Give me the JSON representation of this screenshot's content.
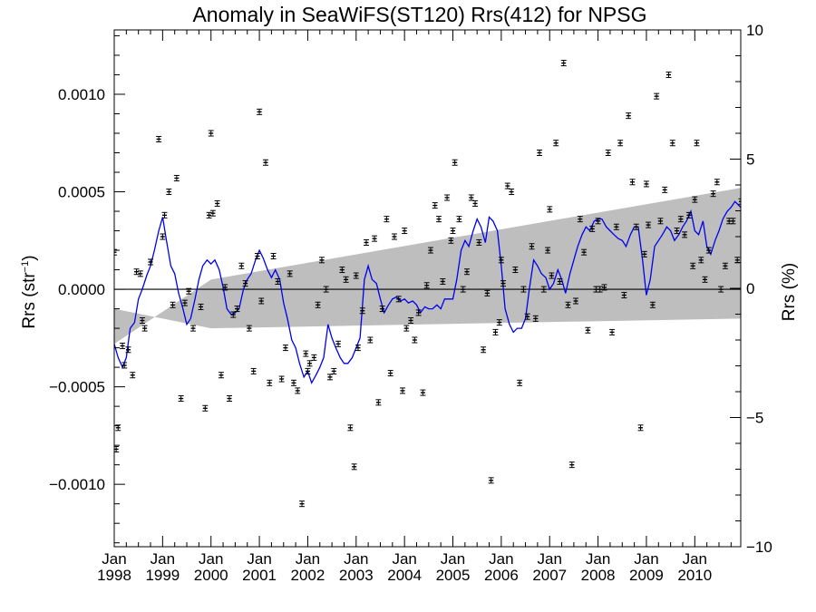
{
  "chart_data": {
    "type": "scatter",
    "title": "Anomaly in SeaWiFS(ST120) Rrs(412) for NPSG",
    "ylabel": "Rrs (str⁻¹)",
    "ylabel_main": "Rrs (str",
    "ylabel_exp": "−1",
    "ylabel_close": ")",
    "y2label": "Rrs (%)",
    "xlim": [
      1998.0,
      2010.95
    ],
    "ylim": [
      -0.00132,
      0.00133
    ],
    "y2lim": [
      -10,
      10
    ],
    "grid": false,
    "legend": "none",
    "zero_line": true,
    "colors": {
      "line": "#0000ee",
      "band": "#bebebe",
      "points": "#000000"
    },
    "yticks": [
      {
        "v": 0.001,
        "label": "0.0010"
      },
      {
        "v": 0.0005,
        "label": "0.0005"
      },
      {
        "v": 0.0,
        "label": "0.0000"
      },
      {
        "v": -0.0005,
        "label": "−0.0005"
      },
      {
        "v": -0.001,
        "label": "−0.0010"
      }
    ],
    "y2ticks": [
      {
        "v": 10,
        "label": "10"
      },
      {
        "v": 5,
        "label": "5"
      },
      {
        "v": 0,
        "label": "0"
      },
      {
        "v": -5,
        "label": "−5"
      },
      {
        "v": -10,
        "label": "−10"
      }
    ],
    "xticks": [
      {
        "v": 1998,
        "month": "Jan",
        "year": "1998"
      },
      {
        "v": 1999,
        "month": "Jan",
        "year": "1999"
      },
      {
        "v": 2000,
        "month": "Jan",
        "year": "2000"
      },
      {
        "v": 2001,
        "month": "Jan",
        "year": "2001"
      },
      {
        "v": 2002,
        "month": "Jan",
        "year": "2002"
      },
      {
        "v": 2003,
        "month": "Jan",
        "year": "2003"
      },
      {
        "v": 2004,
        "month": "Jan",
        "year": "2004"
      },
      {
        "v": 2005,
        "month": "Jan",
        "year": "2005"
      },
      {
        "v": 2006,
        "month": "Jan",
        "year": "2006"
      },
      {
        "v": 2007,
        "month": "Jan",
        "year": "2007"
      },
      {
        "v": 2008,
        "month": "Jan",
        "year": "2008"
      },
      {
        "v": 2009,
        "month": "Jan",
        "year": "2009"
      },
      {
        "v": 2010,
        "month": "Jan",
        "year": "2010"
      }
    ],
    "band": {
      "upper": [
        [
          1998.0,
          -0.00028
        ],
        [
          2000.0,
          5e-05
        ],
        [
          2010.95,
          0.00052
        ]
      ],
      "lower": [
        [
          1998.0,
          -0.0001
        ],
        [
          2000.0,
          -0.0002
        ],
        [
          2010.95,
          -0.00015
        ]
      ]
    },
    "series": [
      {
        "kind": "points",
        "x": [
          1998.0,
          1998.04,
          1998.08,
          1998.17,
          1998.21,
          1998.29,
          1998.38,
          1998.46,
          1998.54,
          1998.58,
          1998.63,
          1998.75,
          1998.92,
          1999.0,
          1999.04,
          1999.13,
          1999.21,
          1999.29,
          1999.38,
          1999.46,
          1999.54,
          1999.63,
          1999.79,
          1999.88,
          1999.96,
          2000.0,
          2000.04,
          2000.13,
          2000.21,
          2000.29,
          2000.38,
          2000.46,
          2000.54,
          2000.63,
          2000.71,
          2000.79,
          2000.88,
          2000.96,
          2001.0,
          2001.04,
          2001.13,
          2001.21,
          2001.29,
          2001.38,
          2001.46,
          2001.54,
          2001.63,
          2001.71,
          2001.79,
          2001.88,
          2001.96,
          2002.0,
          2002.04,
          2002.13,
          2002.21,
          2002.29,
          2002.38,
          2002.46,
          2002.54,
          2002.63,
          2002.71,
          2002.79,
          2002.88,
          2002.96,
          2003.0,
          2003.04,
          2003.13,
          2003.21,
          2003.29,
          2003.38,
          2003.46,
          2003.54,
          2003.63,
          2003.71,
          2003.79,
          2003.88,
          2003.96,
          2004.0,
          2004.04,
          2004.13,
          2004.21,
          2004.29,
          2004.38,
          2004.46,
          2004.54,
          2004.63,
          2004.71,
          2004.79,
          2004.88,
          2004.96,
          2005.0,
          2005.04,
          2005.13,
          2005.21,
          2005.29,
          2005.38,
          2005.46,
          2005.54,
          2005.63,
          2005.71,
          2005.79,
          2005.88,
          2005.96,
          2006.0,
          2006.04,
          2006.13,
          2006.21,
          2006.29,
          2006.38,
          2006.46,
          2006.54,
          2006.63,
          2006.71,
          2006.79,
          2006.88,
          2006.96,
          2007.0,
          2007.04,
          2007.13,
          2007.21,
          2007.29,
          2007.38,
          2007.46,
          2007.54,
          2007.63,
          2007.71,
          2007.79,
          2007.88,
          2007.96,
          2008.0,
          2008.04,
          2008.13,
          2008.21,
          2008.29,
          2008.38,
          2008.46,
          2008.54,
          2008.63,
          2008.71,
          2008.79,
          2008.88,
          2008.96,
          2009.0,
          2009.04,
          2009.13,
          2009.21,
          2009.29,
          2009.38,
          2009.46,
          2009.54,
          2009.63,
          2009.71,
          2009.79,
          2009.88,
          2009.96,
          2010.0,
          2010.04,
          2010.13,
          2010.21,
          2010.29,
          2010.38,
          2010.46,
          2010.54,
          2010.63,
          2010.71,
          2010.79,
          2010.88,
          2010.96
        ],
        "y": [
          0.00019,
          -0.00082,
          -0.00071,
          -0.00029,
          -0.00039,
          -0.00031,
          -0.00044,
          9e-05,
          8e-05,
          -0.00016,
          -0.0002,
          0.00014,
          0.00077,
          0.00027,
          0.00038,
          0.0005,
          -8e-05,
          0.00057,
          -0.00056,
          -7e-05,
          -1e-05,
          -0.0002,
          -9e-05,
          -0.00061,
          0.00038,
          0.0008,
          0.00039,
          0.00044,
          -0.00044,
          1e-05,
          -0.00056,
          -0.00013,
          -0.0001,
          0.00012,
          3e-05,
          -0.0002,
          -0.00042,
          0.00017,
          0.00091,
          -6e-05,
          0.00065,
          -0.00048,
          0.00017,
          4e-05,
          -0.00046,
          -0.0003,
          8e-05,
          -0.00048,
          -0.00052,
          -0.0011,
          -0.00033,
          -0.00042,
          -0.00038,
          -0.00035,
          -8e-05,
          0.00015,
          0.0,
          -0.00045,
          -0.00042,
          -0.00028,
          0.0001,
          5e-05,
          -0.00071,
          -0.00091,
          7e-05,
          -0.0003,
          -0.00011,
          0.00024,
          -0.00026,
          0.00026,
          -0.00058,
          -0.0001,
          0.00036,
          -0.00043,
          0.00027,
          -5e-05,
          -0.00052,
          0.0003,
          -0.0002,
          -0.00016,
          -0.00026,
          -0.00012,
          -0.00053,
          2e-05,
          0.0002,
          0.00043,
          0.00036,
          4e-05,
          0.00047,
          0.00025,
          0.0003,
          0.00065,
          0.00036,
          0.0,
          9e-05,
          0.00047,
          0.00044,
          0.00024,
          -0.00031,
          -2e-05,
          -0.00098,
          -0.00022,
          -0.00017,
          0.00015,
          3e-05,
          0.00053,
          0.0005,
          0.0001,
          -0.00048,
          0.0,
          -0.00014,
          0.00022,
          -0.00015,
          0.0007,
          0.0,
          0.0002,
          0.00041,
          7e-05,
          0.00075,
          4e-05,
          0.00116,
          -8e-05,
          -0.0009,
          -6e-05,
          0.00036,
          0.00019,
          -0.00021,
          0.00031,
          0.0,
          0.00035,
          0.0,
          1e-05,
          0.0007,
          -0.00022,
          0.00032,
          0.00075,
          -3e-05,
          0.00089,
          0.00055,
          0.00032,
          -0.00071,
          0.00018,
          0.00054,
          0.00033,
          -8e-05,
          0.00099,
          0.00035,
          0.00051,
          0.0011,
          0.00075,
          0.0003,
          0.00036,
          0.00028,
          0.00038,
          0.00012,
          0.00046,
          0.00075,
          0.00015,
          5e-05,
          0.0002,
          0.00049,
          0.00055,
          0.0,
          0.00012,
          0.00035,
          0.00035,
          0.00015,
          0.00045
        ]
      },
      {
        "kind": "line",
        "x": [
          1998.0,
          1998.08,
          1998.17,
          1998.25,
          1998.33,
          1998.42,
          1998.5,
          1998.58,
          1998.67,
          1998.75,
          1998.83,
          1998.92,
          1999.0,
          1999.08,
          1999.17,
          1999.25,
          1999.33,
          1999.42,
          1999.5,
          1999.58,
          1999.67,
          1999.75,
          1999.83,
          1999.92,
          2000.0,
          2000.08,
          2000.17,
          2000.25,
          2000.33,
          2000.42,
          2000.5,
          2000.58,
          2000.67,
          2000.75,
          2000.83,
          2000.92,
          2001.0,
          2001.08,
          2001.17,
          2001.25,
          2001.33,
          2001.42,
          2001.5,
          2001.58,
          2001.67,
          2001.75,
          2001.83,
          2001.92,
          2002.0,
          2002.08,
          2002.17,
          2002.25,
          2002.33,
          2002.42,
          2002.5,
          2002.58,
          2002.67,
          2002.75,
          2002.83,
          2002.92,
          2003.0,
          2003.08,
          2003.17,
          2003.25,
          2003.33,
          2003.42,
          2003.5,
          2003.58,
          2003.67,
          2003.75,
          2003.83,
          2003.92,
          2004.0,
          2004.08,
          2004.17,
          2004.25,
          2004.33,
          2004.42,
          2004.5,
          2004.58,
          2004.67,
          2004.75,
          2004.83,
          2004.92,
          2005.0,
          2005.08,
          2005.17,
          2005.25,
          2005.33,
          2005.42,
          2005.5,
          2005.58,
          2005.67,
          2005.75,
          2005.83,
          2005.92,
          2006.0,
          2006.08,
          2006.17,
          2006.25,
          2006.33,
          2006.42,
          2006.5,
          2006.58,
          2006.67,
          2006.75,
          2006.83,
          2006.92,
          2007.0,
          2007.08,
          2007.17,
          2007.25,
          2007.33,
          2007.42,
          2007.5,
          2007.58,
          2007.67,
          2007.75,
          2007.83,
          2007.92,
          2008.0,
          2008.08,
          2008.17,
          2008.25,
          2008.33,
          2008.42,
          2008.5,
          2008.58,
          2008.67,
          2008.75,
          2008.83,
          2008.92,
          2009.0,
          2009.08,
          2009.17,
          2009.25,
          2009.33,
          2009.42,
          2009.5,
          2009.58,
          2009.67,
          2009.75,
          2009.83,
          2009.92,
          2010.0,
          2010.08,
          2010.17,
          2010.25,
          2010.33,
          2010.42,
          2010.5,
          2010.58,
          2010.67,
          2010.75,
          2010.83,
          2010.95
        ],
        "y": [
          -0.00028,
          -0.00035,
          -0.0004,
          -0.00035,
          -0.0002,
          -0.00017,
          -5e-05,
          0.0,
          7e-05,
          0.00012,
          0.0002,
          0.0003,
          0.00037,
          0.00025,
          0.00012,
          8e-05,
          -2e-05,
          -0.0001,
          -0.00018,
          -0.00015,
          -5e-05,
          5e-05,
          0.00012,
          0.00015,
          0.00013,
          0.00015,
          0.0001,
          1e-05,
          -0.0001,
          -0.00013,
          -0.00012,
          -0.0001,
          0.0,
          5e-05,
          8e-05,
          0.00015,
          0.0002,
          0.00016,
          0.0001,
          6e-05,
          0.0001,
          5e-05,
          -7e-05,
          -0.00015,
          -0.00026,
          -0.0003,
          -0.00038,
          -0.00045,
          -0.00042,
          -0.00048,
          -0.00044,
          -0.0004,
          -0.00035,
          -0.00018,
          -0.00025,
          -0.0003,
          -0.00035,
          -0.00038,
          -0.00038,
          -0.00035,
          -0.0003,
          -0.00025,
          5e-05,
          0.00012,
          5e-05,
          3e-05,
          -5e-05,
          -0.00012,
          -8e-05,
          -5e-05,
          -4e-05,
          -6e-05,
          -5e-05,
          -7e-05,
          -6e-05,
          -8e-05,
          -0.00012,
          -9e-05,
          -0.0001,
          -0.0001,
          -8e-05,
          -0.0001,
          -5e-05,
          -5e-05,
          -5e-05,
          5e-05,
          0.0002,
          0.00025,
          0.00022,
          0.0003,
          0.00036,
          0.00032,
          0.00024,
          0.00037,
          0.00035,
          0.0003,
          0.00012,
          -0.0001,
          -0.00018,
          -0.00022,
          -0.0002,
          -0.0002,
          -0.00015,
          0.0,
          0.00015,
          0.00012,
          8e-05,
          6e-05,
          0.0,
          3e-05,
          0.0001,
          5e-05,
          -2e-05,
          8e-05,
          0.00015,
          0.00022,
          0.00028,
          0.00032,
          0.0003,
          0.00035,
          0.00036,
          0.00036,
          0.00032,
          0.0003,
          0.00028,
          0.00026,
          0.00025,
          0.00022,
          0.00028,
          0.00032,
          0.00032,
          0.00015,
          -3e-05,
          5e-05,
          0.00022,
          0.00025,
          0.00028,
          0.00032,
          0.0003,
          0.00025,
          0.00028,
          0.00032,
          0.00035,
          0.0004,
          0.0003,
          0.00028,
          0.00035,
          0.00022,
          0.00018,
          0.00025,
          0.0003,
          0.00036,
          0.0004,
          0.00042,
          0.00045,
          0.00042
        ]
      }
    ]
  }
}
